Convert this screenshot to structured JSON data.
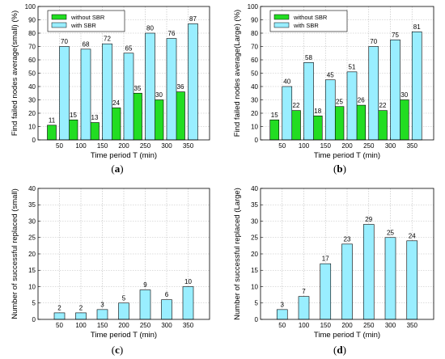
{
  "chart_data": [
    {
      "type": "bar",
      "caption": "(a)",
      "categories": [
        "50",
        "100",
        "150",
        "200",
        "250",
        "300",
        "350"
      ],
      "series": [
        {
          "name": "without SBR",
          "values": [
            11,
            15,
            13,
            24,
            35,
            30,
            36
          ]
        },
        {
          "name": "with SBR",
          "values": [
            70,
            68,
            72,
            65,
            80,
            76,
            87
          ]
        }
      ],
      "xlabel": "Time period T (min)",
      "ylabel": "Find failed nodes average(small) (%)",
      "ylim": [
        0,
        100
      ],
      "yticks": [
        0,
        10,
        20,
        30,
        40,
        50,
        60,
        70,
        80,
        90,
        100
      ],
      "grid": true,
      "legend": "top-left"
    },
    {
      "type": "bar",
      "caption": "(b)",
      "categories": [
        "50",
        "100",
        "150",
        "200",
        "250",
        "300",
        "350"
      ],
      "series": [
        {
          "name": "without SBR",
          "values": [
            15,
            22,
            18,
            25,
            26,
            22,
            30
          ]
        },
        {
          "name": "with SBR",
          "values": [
            40,
            58,
            45,
            51,
            70,
            75,
            81
          ]
        }
      ],
      "xlabel": "Time period T (min)",
      "ylabel": "Find failed nodes average(Large) (%)",
      "ylim": [
        0,
        100
      ],
      "yticks": [
        0,
        10,
        20,
        30,
        40,
        50,
        60,
        70,
        80,
        90,
        100
      ],
      "grid": true,
      "legend": "top-left"
    },
    {
      "type": "bar",
      "caption": "(c)",
      "categories": [
        "50",
        "100",
        "150",
        "200",
        "250",
        "300",
        "350"
      ],
      "series": [
        {
          "values": [
            2,
            2,
            3,
            5,
            9,
            6,
            10
          ]
        }
      ],
      "xlabel": "Time period T (min)",
      "ylabel": "Number of successful replaced (small)",
      "ylim": [
        0,
        40
      ],
      "yticks": [
        0,
        5,
        10,
        15,
        20,
        25,
        30,
        35,
        40
      ],
      "grid": true
    },
    {
      "type": "bar",
      "caption": "(d)",
      "categories": [
        "50",
        "100",
        "150",
        "200",
        "250",
        "300",
        "350"
      ],
      "series": [
        {
          "values": [
            3,
            7,
            17,
            23,
            29,
            25,
            24
          ]
        }
      ],
      "xlabel": "Time period T (min)",
      "ylabel": "Number of successful replaced (Large)",
      "ylim": [
        0,
        40
      ],
      "yticks": [
        0,
        5,
        10,
        15,
        20,
        25,
        30,
        35,
        40
      ],
      "grid": true
    }
  ],
  "colors": {
    "without_sbr": "#22dd22",
    "with_sbr": "#99eeff",
    "single": "#99eeff",
    "grid": "#bbbbbb"
  }
}
